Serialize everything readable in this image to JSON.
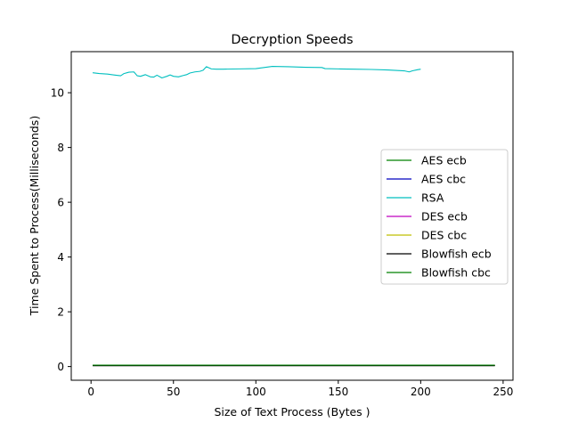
{
  "chart_data": {
    "type": "line",
    "title": "Decryption Speeds",
    "xlabel": "Size of Text Process (Bytes )",
    "ylabel": "Time Spent to Process(Milliseconds)",
    "xlim": [
      -12,
      256
    ],
    "ylim": [
      -0.5,
      11.5
    ],
    "xticks": [
      0,
      50,
      100,
      150,
      200,
      250
    ],
    "yticks": [
      0,
      2,
      4,
      6,
      8,
      10
    ],
    "grid": false,
    "legend_position": "center-right",
    "series": [
      {
        "name": "AES  ecb",
        "color": "#008000",
        "x": [
          1,
          245
        ],
        "y": [
          0.04,
          0.04
        ]
      },
      {
        "name": "AES  cbc",
        "color": "#0000bf",
        "x": [
          1,
          245
        ],
        "y": [
          0.04,
          0.04
        ]
      },
      {
        "name": "RSA",
        "color": "#00bfbf",
        "x": [
          1,
          5,
          10,
          15,
          18,
          20,
          23,
          26,
          28,
          30,
          33,
          36,
          38,
          40,
          43,
          46,
          48,
          50,
          53,
          56,
          58,
          60,
          63,
          66,
          68,
          70,
          73,
          76,
          80,
          90,
          100,
          110,
          120,
          130,
          140,
          142,
          150,
          160,
          170,
          180,
          190,
          193,
          195,
          198,
          200
        ],
        "y": [
          10.73,
          10.7,
          10.68,
          10.64,
          10.62,
          10.7,
          10.75,
          10.76,
          10.62,
          10.6,
          10.66,
          10.58,
          10.57,
          10.64,
          10.54,
          10.6,
          10.65,
          10.6,
          10.58,
          10.63,
          10.66,
          10.72,
          10.76,
          10.78,
          10.82,
          10.95,
          10.87,
          10.86,
          10.86,
          10.87,
          10.88,
          10.96,
          10.95,
          10.93,
          10.92,
          10.88,
          10.87,
          10.86,
          10.85,
          10.83,
          10.8,
          10.76,
          10.8,
          10.84,
          10.86
        ]
      },
      {
        "name": "DES  ecb",
        "color": "#bf00bf",
        "x": [
          1,
          245
        ],
        "y": [
          0.04,
          0.04
        ]
      },
      {
        "name": "DES  cbc",
        "color": "#bfbf00",
        "x": [
          1,
          245
        ],
        "y": [
          0.04,
          0.04
        ]
      },
      {
        "name": "Blowfish  ecb",
        "color": "#000000",
        "x": [
          1,
          245
        ],
        "y": [
          0.03,
          0.03
        ]
      },
      {
        "name": "Blowfish  cbc",
        "color": "#008000",
        "x": [
          1,
          245
        ],
        "y": [
          0.05,
          0.05
        ]
      }
    ]
  }
}
